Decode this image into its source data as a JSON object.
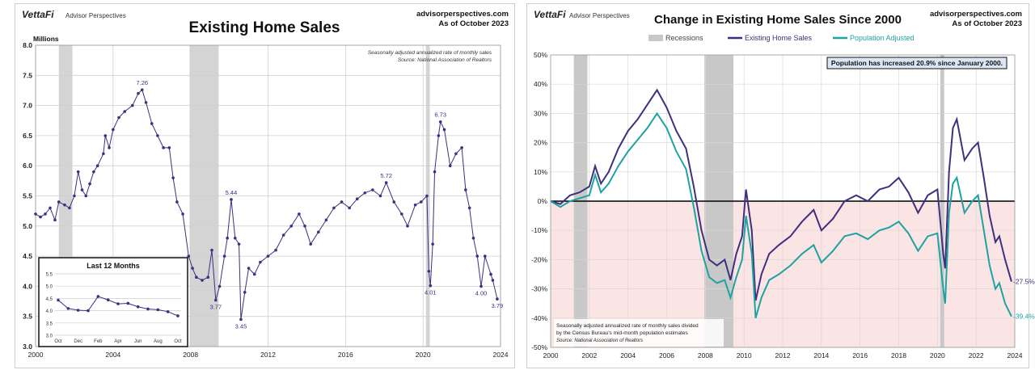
{
  "chart_data": [
    {
      "type": "line",
      "brand": "VettaFi",
      "brand_sub": "Advisor Perspectives",
      "site": "advisorperspectives.com",
      "as_of": "As of October 2023",
      "title": "Existing Home Sales",
      "ylabel": "Millions",
      "note1": "Seasonally adjusted annualized rate of monthly sales",
      "note2": "Source: National Association of Realtors",
      "xlim": [
        2000,
        2024
      ],
      "ylim": [
        3.0,
        8.0
      ],
      "x_ticks": [
        "2000",
        "2004",
        "2008",
        "2012",
        "2016",
        "2020",
        "2024"
      ],
      "y_ticks": [
        "3.0",
        "3.5",
        "4.0",
        "4.5",
        "5.0",
        "5.5",
        "6.0",
        "6.5",
        "7.0",
        "7.5",
        "8.0"
      ],
      "recessions": [
        [
          2001.2,
          2001.9
        ],
        [
          2007.95,
          2009.45
        ],
        [
          2020.15,
          2020.35
        ]
      ],
      "line_color": "#3f2f7f",
      "series": [
        {
          "values": [
            [
              2000.0,
              5.2
            ],
            [
              2000.25,
              5.15
            ],
            [
              2000.5,
              5.2
            ],
            [
              2000.75,
              5.3
            ],
            [
              2001.0,
              5.1
            ],
            [
              2001.2,
              5.4
            ],
            [
              2001.5,
              5.35
            ],
            [
              2001.75,
              5.3
            ],
            [
              2002.0,
              5.5
            ],
            [
              2002.2,
              5.9
            ],
            [
              2002.4,
              5.6
            ],
            [
              2002.6,
              5.5
            ],
            [
              2002.8,
              5.7
            ],
            [
              2003.0,
              5.9
            ],
            [
              2003.2,
              6.0
            ],
            [
              2003.5,
              6.2
            ],
            [
              2003.6,
              6.5
            ],
            [
              2003.8,
              6.3
            ],
            [
              2004.0,
              6.6
            ],
            [
              2004.3,
              6.8
            ],
            [
              2004.6,
              6.9
            ],
            [
              2005.0,
              7.0
            ],
            [
              2005.3,
              7.2
            ],
            [
              2005.5,
              7.26
            ],
            [
              2005.7,
              7.05
            ],
            [
              2006.0,
              6.7
            ],
            [
              2006.3,
              6.5
            ],
            [
              2006.6,
              6.3
            ],
            [
              2006.9,
              6.3
            ],
            [
              2007.1,
              5.8
            ],
            [
              2007.3,
              5.4
            ],
            [
              2007.6,
              5.2
            ],
            [
              2007.9,
              4.5
            ],
            [
              2008.1,
              4.3
            ],
            [
              2008.3,
              4.15
            ],
            [
              2008.6,
              4.1
            ],
            [
              2008.9,
              4.15
            ],
            [
              2009.1,
              4.6
            ],
            [
              2009.3,
              3.77
            ],
            [
              2009.5,
              4.0
            ],
            [
              2009.75,
              4.5
            ],
            [
              2009.9,
              4.8
            ],
            [
              2010.1,
              5.44
            ],
            [
              2010.3,
              4.8
            ],
            [
              2010.5,
              4.7
            ],
            [
              2010.6,
              3.45
            ],
            [
              2010.8,
              3.9
            ],
            [
              2011.0,
              4.3
            ],
            [
              2011.3,
              4.2
            ],
            [
              2011.6,
              4.4
            ],
            [
              2012.0,
              4.5
            ],
            [
              2012.4,
              4.6
            ],
            [
              2012.8,
              4.85
            ],
            [
              2013.2,
              5.0
            ],
            [
              2013.6,
              5.2
            ],
            [
              2013.9,
              5.0
            ],
            [
              2014.2,
              4.7
            ],
            [
              2014.6,
              4.9
            ],
            [
              2015.0,
              5.1
            ],
            [
              2015.4,
              5.3
            ],
            [
              2015.8,
              5.4
            ],
            [
              2016.2,
              5.3
            ],
            [
              2016.6,
              5.45
            ],
            [
              2017.0,
              5.55
            ],
            [
              2017.4,
              5.6
            ],
            [
              2017.8,
              5.5
            ],
            [
              2018.1,
              5.72
            ],
            [
              2018.5,
              5.4
            ],
            [
              2018.9,
              5.2
            ],
            [
              2019.2,
              5.0
            ],
            [
              2019.6,
              5.35
            ],
            [
              2019.9,
              5.4
            ],
            [
              2020.2,
              5.5
            ],
            [
              2020.3,
              4.25
            ],
            [
              2020.38,
              4.01
            ],
            [
              2020.5,
              4.7
            ],
            [
              2020.6,
              5.9
            ],
            [
              2020.8,
              6.5
            ],
            [
              2020.9,
              6.73
            ],
            [
              2021.1,
              6.6
            ],
            [
              2021.4,
              6.0
            ],
            [
              2021.7,
              6.2
            ],
            [
              2022.0,
              6.3
            ],
            [
              2022.2,
              5.6
            ],
            [
              2022.4,
              5.3
            ],
            [
              2022.6,
              4.8
            ],
            [
              2022.8,
              4.5
            ],
            [
              2023.0,
              4.0
            ],
            [
              2023.2,
              4.5
            ],
            [
              2023.5,
              4.2
            ],
            [
              2023.6,
              4.1
            ],
            [
              2023.83,
              3.79
            ]
          ]
        }
      ],
      "annotations": [
        {
          "x": 2005.5,
          "y": 7.26,
          "label": "7.26",
          "pos": "above"
        },
        {
          "x": 2009.3,
          "y": 3.77,
          "label": "3.77",
          "pos": "below"
        },
        {
          "x": 2010.1,
          "y": 5.44,
          "label": "5.44",
          "pos": "above"
        },
        {
          "x": 2010.6,
          "y": 3.45,
          "label": "3.45",
          "pos": "below"
        },
        {
          "x": 2018.1,
          "y": 5.72,
          "label": "5.72",
          "pos": "above"
        },
        {
          "x": 2020.9,
          "y": 6.73,
          "label": "6.73",
          "pos": "above"
        },
        {
          "x": 2020.38,
          "y": 4.01,
          "label": "4.01",
          "pos": "below"
        },
        {
          "x": 2023.0,
          "y": 4.0,
          "label": "4.00",
          "pos": "below"
        },
        {
          "x": 2023.83,
          "y": 3.79,
          "label": "3.79",
          "pos": "below"
        }
      ],
      "inset": {
        "title": "Last 12 Months",
        "x_ticks": [
          "Oct",
          "Dec",
          "Feb",
          "Apr",
          "Jun",
          "Aug",
          "Oct"
        ],
        "y_ticks": [
          "3.0",
          "3.5",
          "4.0",
          "4.5",
          "5.0",
          "5.5"
        ],
        "ylim": [
          3.0,
          5.5
        ],
        "values": [
          4.43,
          4.09,
          4.02,
          4.0,
          4.58,
          4.44,
          4.28,
          4.3,
          4.16,
          4.07,
          4.04,
          3.96,
          3.79
        ]
      }
    },
    {
      "type": "line",
      "brand": "VettaFi",
      "brand_sub": "Advisor Perspectives",
      "site": "advisorperspectives.com",
      "as_of": "As of October 2023",
      "title": "Change in Existing Home Sales Since 2000",
      "legend": [
        "Recessions",
        "Existing Home Sales",
        "Population Adjusted"
      ],
      "callout": "Population has increased 20.9% since January 2000.",
      "note1": "Seasonally adjusted annualized rate of monthly sales divided",
      "note2": "by the Census Bureau's mid-month population estimates",
      "note3": "Source: National Association of Realtors",
      "xlim": [
        2000,
        2024
      ],
      "ylim": [
        -50,
        50
      ],
      "x_ticks": [
        "2000",
        "2002",
        "2004",
        "2006",
        "2008",
        "2010",
        "2012",
        "2014",
        "2016",
        "2018",
        "2020",
        "2022",
        "2024"
      ],
      "y_ticks": [
        "50%",
        "40%",
        "30%",
        "20%",
        "10%",
        "0%",
        "-10%",
        "-20%",
        "-30%",
        "-40%",
        "-50%"
      ],
      "recessions": [
        [
          2001.2,
          2001.9
        ],
        [
          2007.95,
          2009.45
        ],
        [
          2020.15,
          2020.35
        ]
      ],
      "colors": {
        "sales": "#3f2f7f",
        "adjusted": "#1fa3a0",
        "recession": "#c8c8c8",
        "negative_zone": "#fbe4e4"
      },
      "series": [
        {
          "name": "Existing Home Sales",
          "values": [
            [
              2000.0,
              0
            ],
            [
              2000.5,
              -1
            ],
            [
              2001.0,
              2
            ],
            [
              2001.5,
              3
            ],
            [
              2002.0,
              5
            ],
            [
              2002.3,
              12
            ],
            [
              2002.6,
              6
            ],
            [
              2003.0,
              10
            ],
            [
              2003.5,
              18
            ],
            [
              2004.0,
              24
            ],
            [
              2004.5,
              28
            ],
            [
              2005.0,
              33
            ],
            [
              2005.5,
              38
            ],
            [
              2006.0,
              32
            ],
            [
              2006.5,
              24
            ],
            [
              2007.0,
              18
            ],
            [
              2007.4,
              5
            ],
            [
              2007.8,
              -10
            ],
            [
              2008.2,
              -20
            ],
            [
              2008.6,
              -22
            ],
            [
              2009.0,
              -20
            ],
            [
              2009.3,
              -27
            ],
            [
              2009.6,
              -18
            ],
            [
              2009.9,
              -12
            ],
            [
              2010.1,
              4
            ],
            [
              2010.4,
              -10
            ],
            [
              2010.6,
              -34
            ],
            [
              2010.9,
              -25
            ],
            [
              2011.3,
              -18
            ],
            [
              2011.8,
              -15
            ],
            [
              2012.4,
              -12
            ],
            [
              2013.0,
              -7
            ],
            [
              2013.6,
              -3
            ],
            [
              2014.0,
              -10
            ],
            [
              2014.6,
              -6
            ],
            [
              2015.2,
              0
            ],
            [
              2015.8,
              2
            ],
            [
              2016.4,
              0
            ],
            [
              2017.0,
              4
            ],
            [
              2017.5,
              5
            ],
            [
              2018.0,
              8
            ],
            [
              2018.5,
              3
            ],
            [
              2019.0,
              -4
            ],
            [
              2019.5,
              2
            ],
            [
              2020.0,
              4
            ],
            [
              2020.3,
              -18
            ],
            [
              2020.4,
              -23
            ],
            [
              2020.6,
              10
            ],
            [
              2020.8,
              25
            ],
            [
              2021.0,
              28
            ],
            [
              2021.4,
              14
            ],
            [
              2021.8,
              18
            ],
            [
              2022.1,
              20
            ],
            [
              2022.4,
              8
            ],
            [
              2022.7,
              -5
            ],
            [
              2023.0,
              -14
            ],
            [
              2023.2,
              -12
            ],
            [
              2023.5,
              -20
            ],
            [
              2023.83,
              -27.5
            ]
          ]
        },
        {
          "name": "Population Adjusted",
          "values": [
            [
              2000.0,
              0
            ],
            [
              2000.5,
              -2
            ],
            [
              2001.0,
              0
            ],
            [
              2001.5,
              1
            ],
            [
              2002.0,
              2
            ],
            [
              2002.3,
              9
            ],
            [
              2002.6,
              3
            ],
            [
              2003.0,
              6
            ],
            [
              2003.5,
              12
            ],
            [
              2004.0,
              17
            ],
            [
              2004.5,
              21
            ],
            [
              2005.0,
              25
            ],
            [
              2005.5,
              30
            ],
            [
              2006.0,
              25
            ],
            [
              2006.5,
              17
            ],
            [
              2007.0,
              11
            ],
            [
              2007.4,
              -2
            ],
            [
              2007.8,
              -17
            ],
            [
              2008.2,
              -26
            ],
            [
              2008.6,
              -28
            ],
            [
              2009.0,
              -27
            ],
            [
              2009.3,
              -33
            ],
            [
              2009.6,
              -26
            ],
            [
              2009.9,
              -20
            ],
            [
              2010.1,
              -5
            ],
            [
              2010.4,
              -18
            ],
            [
              2010.6,
              -40
            ],
            [
              2010.9,
              -33
            ],
            [
              2011.3,
              -27
            ],
            [
              2011.8,
              -25
            ],
            [
              2012.4,
              -22
            ],
            [
              2013.0,
              -18
            ],
            [
              2013.6,
              -15
            ],
            [
              2014.0,
              -21
            ],
            [
              2014.6,
              -17
            ],
            [
              2015.2,
              -12
            ],
            [
              2015.8,
              -11
            ],
            [
              2016.4,
              -13
            ],
            [
              2017.0,
              -10
            ],
            [
              2017.5,
              -9
            ],
            [
              2018.0,
              -7
            ],
            [
              2018.5,
              -11
            ],
            [
              2019.0,
              -17
            ],
            [
              2019.5,
              -12
            ],
            [
              2020.0,
              -11
            ],
            [
              2020.3,
              -30
            ],
            [
              2020.4,
              -35
            ],
            [
              2020.6,
              -4
            ],
            [
              2020.8,
              6
            ],
            [
              2021.0,
              8
            ],
            [
              2021.4,
              -4
            ],
            [
              2021.8,
              0
            ],
            [
              2022.1,
              2
            ],
            [
              2022.4,
              -10
            ],
            [
              2022.7,
              -22
            ],
            [
              2023.0,
              -30
            ],
            [
              2023.2,
              -28
            ],
            [
              2023.5,
              -35
            ],
            [
              2023.83,
              -39.4
            ]
          ]
        }
      ],
      "end_labels": [
        "-27.5%",
        "-39.4%"
      ]
    }
  ]
}
